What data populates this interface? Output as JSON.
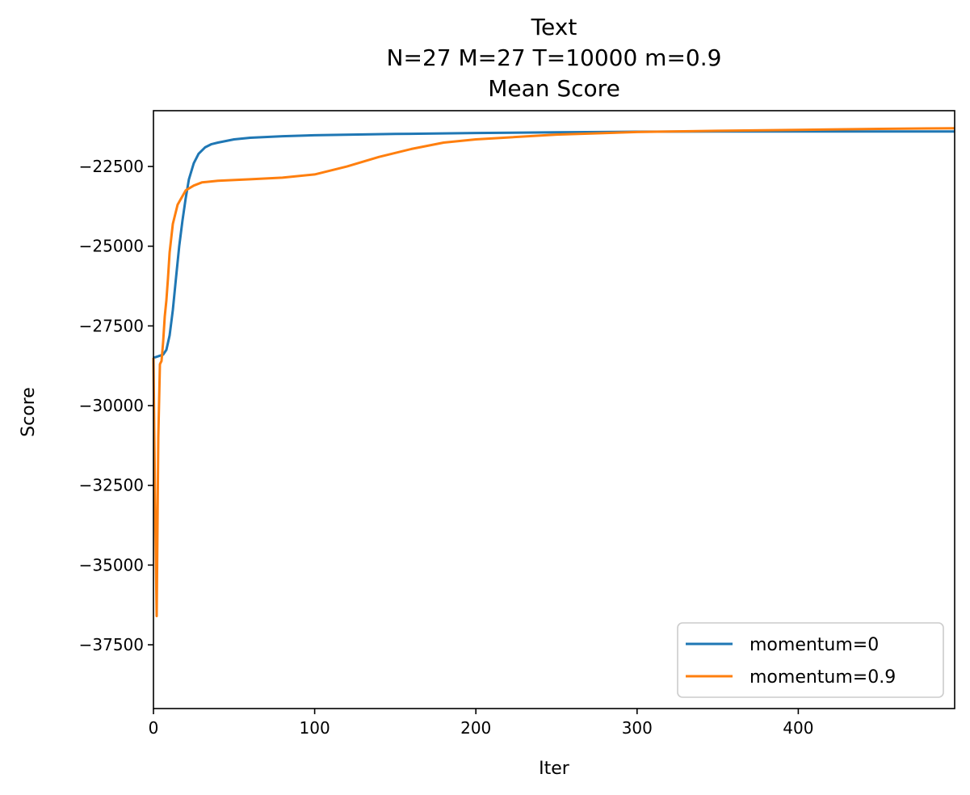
{
  "chart_data": {
    "type": "line",
    "title_lines": [
      "Text",
      "N=27 M=27 T=10000 m=0.9",
      "Mean Score"
    ],
    "xlabel": "Iter",
    "ylabel": "Score",
    "xlim": [
      0,
      497
    ],
    "ylim": [
      -39500,
      -20750
    ],
    "x_ticks": [
      0,
      100,
      200,
      300,
      400
    ],
    "x_tick_labels": [
      "0",
      "100",
      "200",
      "300",
      "400"
    ],
    "y_ticks": [
      -22500,
      -25000,
      -27500,
      -30000,
      -32500,
      -35000,
      -37500
    ],
    "y_tick_labels": [
      "−22500",
      "−25000",
      "−27500",
      "−30000",
      "−32500",
      "−35000",
      "−37500"
    ],
    "legend_position": "lower-right",
    "series": [
      {
        "name": "momentum=0",
        "color": "#1f77b4",
        "x": [
          0,
          3,
          6,
          8,
          10,
          12,
          14,
          16,
          18,
          20,
          22,
          25,
          28,
          32,
          36,
          40,
          50,
          60,
          80,
          100,
          150,
          200,
          250,
          300,
          350,
          400,
          450,
          497
        ],
        "y": [
          -28500,
          -28450,
          -28400,
          -28250,
          -27800,
          -27000,
          -26000,
          -25000,
          -24200,
          -23500,
          -22900,
          -22400,
          -22100,
          -21900,
          -21800,
          -21750,
          -21650,
          -21600,
          -21550,
          -21520,
          -21480,
          -21450,
          -21430,
          -21410,
          -21400,
          -21400,
          -21400,
          -21400
        ]
      },
      {
        "name": "momentum=0.9",
        "color": "#ff7f0e",
        "x": [
          0,
          1,
          2,
          3,
          4,
          5,
          6,
          7,
          8,
          9,
          10,
          12,
          15,
          20,
          25,
          30,
          40,
          60,
          80,
          100,
          120,
          140,
          160,
          180,
          200,
          250,
          300,
          350,
          400,
          450,
          497
        ],
        "y": [
          -28500,
          -33000,
          -36600,
          -31000,
          -28700,
          -28600,
          -28000,
          -27200,
          -26700,
          -26000,
          -25200,
          -24300,
          -23700,
          -23250,
          -23100,
          -23000,
          -22950,
          -22900,
          -22850,
          -22750,
          -22500,
          -22200,
          -21950,
          -21750,
          -21650,
          -21500,
          -21420,
          -21380,
          -21350,
          -21320,
          -21300
        ]
      }
    ]
  }
}
